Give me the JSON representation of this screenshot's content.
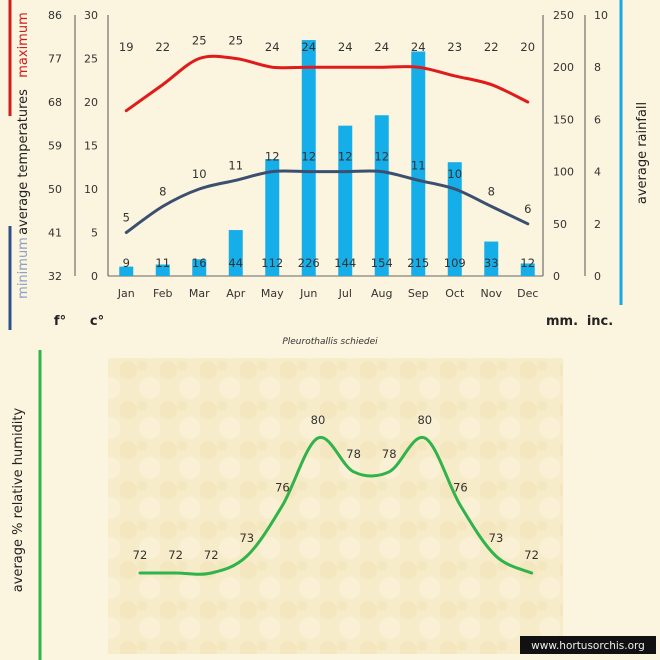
{
  "chart_data": [
    {
      "type": "bar",
      "title": "Pleurothallis schiedei",
      "categories": [
        "Jan",
        "Feb",
        "Mar",
        "Apr",
        "May",
        "Jun",
        "Jul",
        "Aug",
        "Sep",
        "Oct",
        "Nov",
        "Dec"
      ],
      "series": [
        {
          "name": "maximum",
          "values": [
            19,
            22,
            25,
            25,
            24,
            24,
            24,
            24,
            24,
            23,
            22,
            20
          ],
          "color": "#e01b1b"
        },
        {
          "name": "minimum",
          "values": [
            5,
            8,
            10,
            11,
            12,
            12,
            12,
            12,
            11,
            10,
            8,
            6
          ],
          "color": "#3b5070"
        },
        {
          "name": "average rainfall",
          "values": [
            9,
            11,
            16,
            44,
            112,
            226,
            144,
            154,
            215,
            109,
            33,
            12
          ],
          "color": "#16aee8"
        }
      ],
      "left_axis_label_max": "maximum",
      "left_axis_label_mid": "average  temperatures",
      "left_axis_label_min": "minimum",
      "right_axis_label": "average rainfall",
      "celsius_ticks": [
        "0",
        "5",
        "10",
        "15",
        "20",
        "25",
        "30"
      ],
      "fahrenheit_ticks": [
        "32",
        "41",
        "50",
        "59",
        "68",
        "77",
        "86"
      ],
      "mm_ticks": [
        "0",
        "50",
        "100",
        "150",
        "200",
        "250"
      ],
      "inch_ticks": [
        "0",
        "2",
        "4",
        "6",
        "8",
        "10"
      ],
      "celsius_range": [
        0,
        30
      ],
      "mm_range": [
        0,
        250
      ],
      "unit_f": "f°",
      "unit_c": "c°",
      "unit_mm": "mm.",
      "unit_inch": "inc."
    },
    {
      "type": "line",
      "categories": [
        "Jan",
        "Feb",
        "Mar",
        "Apr",
        "May",
        "Jun",
        "Jul",
        "Aug",
        "Sep",
        "Oct",
        "Nov",
        "Dec"
      ],
      "series": [
        {
          "name": "average %  relative humidity",
          "values": [
            72,
            72,
            72,
            73,
            76,
            80,
            78,
            78,
            80,
            76,
            73,
            72
          ],
          "color": "#2fb34a"
        }
      ],
      "y_axis_label": "average %  relative humidity"
    }
  ],
  "watermark": "www.hortusorchis.org"
}
